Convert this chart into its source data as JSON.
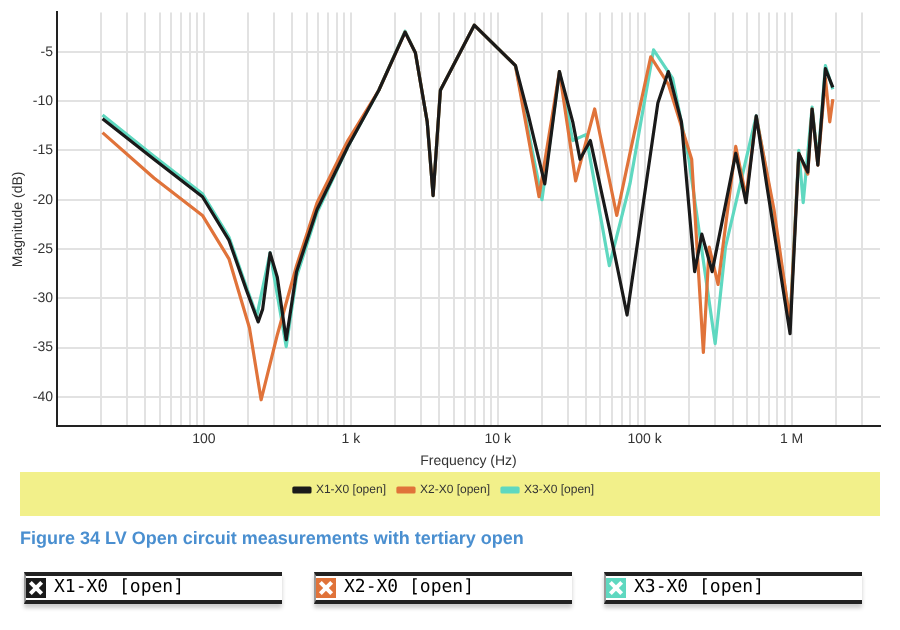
{
  "chart_data": {
    "type": "line",
    "xlabel": "Frequency (Hz)",
    "ylabel": "Magnitude (dB)",
    "log": "x",
    "grid": true,
    "legend": "bottom",
    "marker": "none",
    "line_style": "solid",
    "xlim": [
      10,
      4000000
    ],
    "ylim": [
      -43,
      -1
    ],
    "xticks": [
      {
        "value": 20,
        "label": null
      },
      {
        "value": 30,
        "label": null
      },
      {
        "value": 40,
        "label": null
      },
      {
        "value": 50,
        "label": null
      },
      {
        "value": 60,
        "label": null
      },
      {
        "value": 70,
        "label": null
      },
      {
        "value": 80,
        "label": null
      },
      {
        "value": 90,
        "label": null
      },
      100,
      {
        "value": 200,
        "label": null
      },
      {
        "value": 300,
        "label": null
      },
      {
        "value": 400,
        "label": null
      },
      {
        "value": 500,
        "label": null
      },
      {
        "value": 600,
        "label": null
      },
      {
        "value": 700,
        "label": null
      },
      {
        "value": 800,
        "label": null
      },
      {
        "value": 900,
        "label": null
      },
      {
        "value": 1000,
        "label": "1 k"
      },
      {
        "value": 2000,
        "label": null
      },
      {
        "value": 3000,
        "label": null
      },
      {
        "value": 4000,
        "label": null
      },
      {
        "value": 5000,
        "label": null
      },
      {
        "value": 6000,
        "label": null
      },
      {
        "value": 7000,
        "label": null
      },
      {
        "value": 8000,
        "label": null
      },
      {
        "value": 9000,
        "label": null
      },
      {
        "value": 10000,
        "label": "10 k"
      },
      {
        "value": 20000,
        "label": null
      },
      {
        "value": 30000,
        "label": null
      },
      {
        "value": 40000,
        "label": null
      },
      {
        "value": 50000,
        "label": null
      },
      {
        "value": 60000,
        "label": null
      },
      {
        "value": 70000,
        "label": null
      },
      {
        "value": 80000,
        "label": null
      },
      {
        "value": 90000,
        "label": null
      },
      {
        "value": 100000,
        "label": "100 k"
      },
      {
        "value": 200000,
        "label": null
      },
      {
        "value": 300000,
        "label": null
      },
      {
        "value": 400000,
        "label": null
      },
      {
        "value": 500000,
        "label": null
      },
      {
        "value": 600000,
        "label": null
      },
      {
        "value": 700000,
        "label": null
      },
      {
        "value": 800000,
        "label": null
      },
      {
        "value": 900000,
        "label": null
      },
      {
        "value": 1000000,
        "label": "1 M"
      },
      {
        "value": 2000000,
        "label": null
      },
      {
        "value": 3000000,
        "label": null
      }
    ],
    "yticks": [
      -40,
      -35,
      -30,
      -25,
      -20,
      -15,
      -10,
      -5
    ],
    "annotations": [
      "Figure 34 LV Open circuit measurements with tertiary open"
    ],
    "series": [
      {
        "name": "X1-X0 [open]",
        "color": "#1a1a1a",
        "x": [
          20.4,
          45.7,
          97.7,
          148,
          195,
          234,
          251,
          282,
          316,
          363,
          427,
          589,
          955,
          1550,
          2340,
          2750,
          3310,
          3630,
          4070,
          6920,
          13200,
          16200,
          20900,
          26300,
          32400,
          36300,
          42700,
          57500,
          75900,
          123000,
          145000,
          178000,
          219000,
          245000,
          288000,
          417000,
          490000,
          575000,
          676000,
          977000,
          1120000,
          1290000,
          1380000,
          1510000,
          1700000,
          1910000
        ],
        "values": [
          -11.8,
          -15.9,
          -19.7,
          -24.1,
          -29.2,
          -32.4,
          -31.1,
          -25.4,
          -27.9,
          -34.2,
          -27.3,
          -21.0,
          -14.6,
          -8.9,
          -3.0,
          -5.1,
          -12.1,
          -19.6,
          -8.9,
          -2.3,
          -6.4,
          -11.5,
          -18.4,
          -7.0,
          -12.1,
          -15.9,
          -14.0,
          -22.9,
          -31.7,
          -10.2,
          -7.0,
          -12.1,
          -27.3,
          -23.5,
          -27.3,
          -15.3,
          -20.3,
          -11.5,
          -18.4,
          -33.6,
          -15.3,
          -17.2,
          -10.8,
          -16.5,
          -6.7,
          -8.6
        ]
      },
      {
        "name": "X2-X0 [open]",
        "color": "#e0733a",
        "x": [
          20.4,
          45.7,
          97.7,
          148,
          204,
          245,
          316,
          427,
          589,
          955,
          1550,
          2340,
          2750,
          3310,
          3630,
          4070,
          6920,
          13200,
          19100,
          26300,
          33900,
          45700,
          64600,
          79400,
          110000,
          145000,
          209000,
          251000,
          275000,
          316000,
          417000,
          490000,
          575000,
          759000,
          977000,
          1120000,
          1290000,
          1380000,
          1510000,
          1700000,
          1820000,
          1910000
        ],
        "values": [
          -13.2,
          -17.8,
          -21.6,
          -26.0,
          -33.0,
          -40.3,
          -33.7,
          -26.7,
          -20.3,
          -14.0,
          -8.9,
          -3.0,
          -5.1,
          -12.1,
          -19.6,
          -8.9,
          -2.3,
          -6.4,
          -19.7,
          -7.0,
          -18.1,
          -10.8,
          -21.6,
          -15.3,
          -5.5,
          -8.3,
          -15.9,
          -35.5,
          -24.8,
          -28.6,
          -14.6,
          -19.7,
          -11.6,
          -21.0,
          -32.4,
          -15.3,
          -17.4,
          -10.8,
          -16.5,
          -7.7,
          -12.1,
          -9.8
        ]
      },
      {
        "name": "X3-X0 [open]",
        "color": "#5fd8c0",
        "x": [
          20.4,
          45.7,
          97.7,
          148,
          195,
          229,
          282,
          363,
          427,
          589,
          955,
          1550,
          2340,
          2750,
          3310,
          3630,
          4070,
          6920,
          13200,
          20000,
          26300,
          32400,
          39800,
          57500,
          79400,
          115000,
          155000,
          200000,
          302000,
          355000,
          575000,
          724000,
          977000,
          1120000,
          1200000,
          1380000,
          1510000,
          1700000,
          1910000
        ],
        "values": [
          -11.4,
          -15.6,
          -19.4,
          -23.8,
          -28.9,
          -31.8,
          -25.4,
          -34.9,
          -27.8,
          -21.3,
          -14.6,
          -8.9,
          -2.9,
          -5.1,
          -12.1,
          -19.6,
          -8.9,
          -2.3,
          -6.4,
          -20.0,
          -7.0,
          -14.0,
          -13.4,
          -26.7,
          -18.4,
          -4.8,
          -7.7,
          -15.9,
          -34.6,
          -24.8,
          -11.5,
          -19.7,
          -32.3,
          -15.0,
          -20.3,
          -10.6,
          -16.1,
          -6.4,
          -8.8
        ]
      }
    ]
  }
}
